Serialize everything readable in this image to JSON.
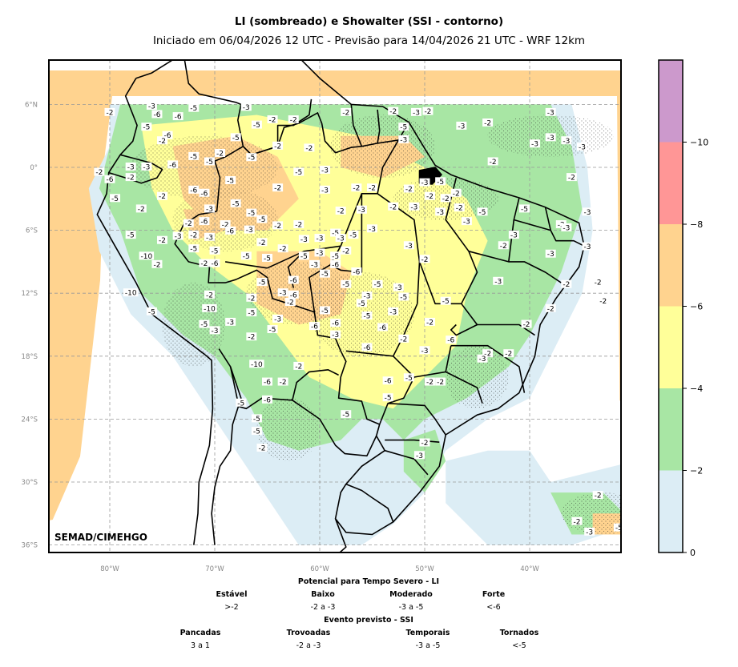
{
  "header": {
    "title": "LI (sombreado) e Showalter (SSI - contorno)",
    "subtitle": "Iniciado em 06/04/2026 12 UTC - Previsão para 14/04/2026 21 UTC - WRF 12km"
  },
  "map": {
    "credit": "SEMAD/CIMEHGO",
    "lat_labels": [
      "6°N",
      "0°",
      "6°S",
      "12°S",
      "18°S",
      "24°S",
      "30°S",
      "36°S"
    ],
    "lon_labels": [
      "80°W",
      "70°W",
      "60°W",
      "50°W",
      "40°W"
    ],
    "shading_colors": {
      "lt0": "#dcedf5",
      "lt2": "#a8e6a4",
      "lt4": "#ffff99",
      "lt6": "#ffd38f",
      "lt8": "#ff9696",
      "lt10": "#cc99cc"
    },
    "contour_labels": [
      {
        "t": "-2",
        "lon": -80,
        "lat": 5.2
      },
      {
        "t": "-3",
        "lon": -76,
        "lat": 5.8
      },
      {
        "t": "-5",
        "lon": -72,
        "lat": 5.6
      },
      {
        "t": "-6",
        "lon": -75.5,
        "lat": 5
      },
      {
        "t": "-6",
        "lon": -73.5,
        "lat": 4.8
      },
      {
        "t": "-3",
        "lon": -67,
        "lat": 5.7
      },
      {
        "t": "-2",
        "lon": -64.5,
        "lat": 4.5
      },
      {
        "t": "-2",
        "lon": -62.5,
        "lat": 4.5
      },
      {
        "t": "-5",
        "lon": -76.5,
        "lat": 3.8
      },
      {
        "t": "-6",
        "lon": -74.5,
        "lat": 3
      },
      {
        "t": "-2",
        "lon": -75,
        "lat": 2.5
      },
      {
        "t": "-5",
        "lon": -68,
        "lat": 2.8
      },
      {
        "t": "-5",
        "lon": -66,
        "lat": 4
      },
      {
        "t": "-2",
        "lon": -64,
        "lat": 2
      },
      {
        "t": "-2",
        "lon": -61,
        "lat": 1.8
      },
      {
        "t": "-2",
        "lon": -57.5,
        "lat": 5.2
      },
      {
        "t": "-2",
        "lon": -53,
        "lat": 5.3
      },
      {
        "t": "-3",
        "lon": -50.8,
        "lat": 5.2
      },
      {
        "t": "-2",
        "lon": -49.7,
        "lat": 5.3
      },
      {
        "t": "-5",
        "lon": -52,
        "lat": 3.8
      },
      {
        "t": "-3",
        "lon": -52,
        "lat": 2.6
      },
      {
        "t": "-3",
        "lon": -46.5,
        "lat": 3.9
      },
      {
        "t": "-2",
        "lon": -44,
        "lat": 4.2
      },
      {
        "t": "-3",
        "lon": -38,
        "lat": 5.2
      },
      {
        "t": "-3",
        "lon": -39.5,
        "lat": 2.2
      },
      {
        "t": "-3",
        "lon": -38,
        "lat": 2.8
      },
      {
        "t": "-3",
        "lon": -35,
        "lat": 1.9
      },
      {
        "t": "-3",
        "lon": -36.5,
        "lat": 2.5
      },
      {
        "t": "-2",
        "lon": -43.5,
        "lat": 0.5
      },
      {
        "t": "-2",
        "lon": -36,
        "lat": -1
      },
      {
        "t": "-3",
        "lon": -78,
        "lat": 0
      },
      {
        "t": "-3",
        "lon": -76.5,
        "lat": 0
      },
      {
        "t": "-6",
        "lon": -74,
        "lat": 0.2
      },
      {
        "t": "-5",
        "lon": -72,
        "lat": 1
      },
      {
        "t": "-5",
        "lon": -70.5,
        "lat": 0.5
      },
      {
        "t": "-2",
        "lon": -69.5,
        "lat": 1.3
      },
      {
        "t": "-5",
        "lon": -66.5,
        "lat": 0.9
      },
      {
        "t": "-2",
        "lon": -81,
        "lat": -0.5
      },
      {
        "t": "-6",
        "lon": -80,
        "lat": -1.2
      },
      {
        "t": "-2",
        "lon": -78,
        "lat": -1
      },
      {
        "t": "-6",
        "lon": -72,
        "lat": -2.2
      },
      {
        "t": "-6",
        "lon": -71,
        "lat": -2.5
      },
      {
        "t": "-3",
        "lon": -70.5,
        "lat": -4
      },
      {
        "t": "-2",
        "lon": -75,
        "lat": -2.8
      },
      {
        "t": "-5",
        "lon": -68.5,
        "lat": -1.3
      },
      {
        "t": "-5",
        "lon": -68,
        "lat": -3.5
      },
      {
        "t": "-5",
        "lon": -62,
        "lat": -0.5
      },
      {
        "t": "-3",
        "lon": -59.5,
        "lat": -0.3
      },
      {
        "t": "-2",
        "lon": -64,
        "lat": -2
      },
      {
        "t": "-3",
        "lon": -59.5,
        "lat": -2.2
      },
      {
        "t": "-2",
        "lon": -56.5,
        "lat": -2
      },
      {
        "t": "-2",
        "lon": -55,
        "lat": -2
      },
      {
        "t": "-2",
        "lon": -51.5,
        "lat": -2.1
      },
      {
        "t": "-2",
        "lon": -49.5,
        "lat": -2.8
      },
      {
        "t": "-2",
        "lon": -48,
        "lat": -3
      },
      {
        "t": "-3",
        "lon": -50,
        "lat": -1.5
      },
      {
        "t": "-5",
        "lon": -48.5,
        "lat": -1.4
      },
      {
        "t": "-2",
        "lon": -47,
        "lat": -2.5
      },
      {
        "t": "-5",
        "lon": -79.5,
        "lat": -3
      },
      {
        "t": "-2",
        "lon": -77,
        "lat": -4
      },
      {
        "t": "-5",
        "lon": -66.5,
        "lat": -4.4
      },
      {
        "t": "-5",
        "lon": -65.5,
        "lat": -5
      },
      {
        "t": "-2",
        "lon": -62,
        "lat": -5.5
      },
      {
        "t": "-2",
        "lon": -58,
        "lat": -4.2
      },
      {
        "t": "-3",
        "lon": -56,
        "lat": -4.1
      },
      {
        "t": "-2",
        "lon": -53,
        "lat": -3.8
      },
      {
        "t": "-3",
        "lon": -51,
        "lat": -3.8
      },
      {
        "t": "-3",
        "lon": -48.5,
        "lat": -4.3
      },
      {
        "t": "-2",
        "lon": -46.7,
        "lat": -3.9
      },
      {
        "t": "-5",
        "lon": -44.5,
        "lat": -4.3
      },
      {
        "t": "-3",
        "lon": -46,
        "lat": -5.2
      },
      {
        "t": "-5",
        "lon": -40.5,
        "lat": -4
      },
      {
        "t": "-3",
        "lon": -34.5,
        "lat": -4.3
      },
      {
        "t": "-2",
        "lon": -37,
        "lat": -5.5
      },
      {
        "t": "-3",
        "lon": -36.5,
        "lat": -5.8
      },
      {
        "t": "-2",
        "lon": -72.5,
        "lat": -5.4
      },
      {
        "t": "-6",
        "lon": -71,
        "lat": -5.2
      },
      {
        "t": "-2",
        "lon": -69,
        "lat": -5.5
      },
      {
        "t": "-3",
        "lon": -73.5,
        "lat": -6.6
      },
      {
        "t": "-2",
        "lon": -72,
        "lat": -6.5
      },
      {
        "t": "-3",
        "lon": -70.5,
        "lat": -6.7
      },
      {
        "t": "-6",
        "lon": -68.5,
        "lat": -6.1
      },
      {
        "t": "-3",
        "lon": -66.7,
        "lat": -6
      },
      {
        "t": "-2",
        "lon": -64,
        "lat": -5.6
      },
      {
        "t": "-3",
        "lon": -61.5,
        "lat": -6.9
      },
      {
        "t": "-3",
        "lon": -60,
        "lat": -6.8
      },
      {
        "t": "-5",
        "lon": -58.5,
        "lat": -6.3
      },
      {
        "t": "-5",
        "lon": -56.8,
        "lat": -6.5
      },
      {
        "t": "-3",
        "lon": -55,
        "lat": -5.9
      },
      {
        "t": "-3",
        "lon": -58,
        "lat": -6.8
      },
      {
        "t": "-5",
        "lon": -78,
        "lat": -6.5
      },
      {
        "t": "-2",
        "lon": -75,
        "lat": -7
      },
      {
        "t": "-10",
        "lon": -76.5,
        "lat": -8.5
      },
      {
        "t": "-2",
        "lon": -75.5,
        "lat": -9.3
      },
      {
        "t": "-5",
        "lon": -72,
        "lat": -7.8
      },
      {
        "t": "-5",
        "lon": -70,
        "lat": -8
      },
      {
        "t": "-2",
        "lon": -71,
        "lat": -9.2
      },
      {
        "t": "-6",
        "lon": -70,
        "lat": -9.2
      },
      {
        "t": "-5",
        "lon": -67,
        "lat": -8.5
      },
      {
        "t": "-5",
        "lon": -65,
        "lat": -8.7
      },
      {
        "t": "-2",
        "lon": -65.5,
        "lat": -7.2
      },
      {
        "t": "-2",
        "lon": -63.5,
        "lat": -7.8
      },
      {
        "t": "-5",
        "lon": -61.5,
        "lat": -8.5
      },
      {
        "t": "-3",
        "lon": -60,
        "lat": -8.2
      },
      {
        "t": "-5",
        "lon": -58.5,
        "lat": -8.5
      },
      {
        "t": "-2",
        "lon": -57.5,
        "lat": -8
      },
      {
        "t": "-6",
        "lon": -58.5,
        "lat": -9.3
      },
      {
        "t": "-6",
        "lon": -56.5,
        "lat": -10
      },
      {
        "t": "-5",
        "lon": -59.5,
        "lat": -10.2
      },
      {
        "t": "-3",
        "lon": -60.5,
        "lat": -9.3
      },
      {
        "t": "-2",
        "lon": -50,
        "lat": -8.8
      },
      {
        "t": "-2",
        "lon": -42.5,
        "lat": -7.5
      },
      {
        "t": "-3",
        "lon": -51.5,
        "lat": -7.5
      },
      {
        "t": "-3",
        "lon": -41.5,
        "lat": -6.5
      },
      {
        "t": "-3",
        "lon": -34.5,
        "lat": -7.6
      },
      {
        "t": "-3",
        "lon": -38,
        "lat": -8.3
      },
      {
        "t": "-10",
        "lon": -78,
        "lat": -12
      },
      {
        "t": "-5",
        "lon": -65.5,
        "lat": -11
      },
      {
        "t": "-6",
        "lon": -62.5,
        "lat": -10.8
      },
      {
        "t": "-5",
        "lon": -57.5,
        "lat": -11.2
      },
      {
        "t": "-5",
        "lon": -54.5,
        "lat": -11.2
      },
      {
        "t": "-3",
        "lon": -52.5,
        "lat": -11.5
      },
      {
        "t": "-3",
        "lon": -55.5,
        "lat": -12.3
      },
      {
        "t": "-5",
        "lon": -52,
        "lat": -12.4
      },
      {
        "t": "-5",
        "lon": -56,
        "lat": -13
      },
      {
        "t": "-3",
        "lon": -53,
        "lat": -13.8
      },
      {
        "t": "-5",
        "lon": -48,
        "lat": -12.8
      },
      {
        "t": "-3",
        "lon": -43,
        "lat": -10.9
      },
      {
        "t": "-2",
        "lon": -33.5,
        "lat": -11
      },
      {
        "t": "-2",
        "lon": -36.5,
        "lat": -11.2
      },
      {
        "t": "-2",
        "lon": -33,
        "lat": -12.8
      },
      {
        "t": "-2",
        "lon": -38,
        "lat": -13.5
      },
      {
        "t": "-3",
        "lon": -63.5,
        "lat": -12
      },
      {
        "t": "-6",
        "lon": -62.5,
        "lat": -12.2
      },
      {
        "t": "-2",
        "lon": -62.8,
        "lat": -12.9
      },
      {
        "t": "-2",
        "lon": -70.5,
        "lat": -12.2
      },
      {
        "t": "-2",
        "lon": -66.5,
        "lat": -12.5
      },
      {
        "t": "-10",
        "lon": -70.5,
        "lat": -13.5
      },
      {
        "t": "-5",
        "lon": -76,
        "lat": -13.8
      },
      {
        "t": "-5",
        "lon": -71,
        "lat": -15
      },
      {
        "t": "-3",
        "lon": -70,
        "lat": -15.6
      },
      {
        "t": "-3",
        "lon": -68.5,
        "lat": -14.8
      },
      {
        "t": "-5",
        "lon": -66.5,
        "lat": -13.9
      },
      {
        "t": "-5",
        "lon": -64.5,
        "lat": -15.5
      },
      {
        "t": "-3",
        "lon": -64,
        "lat": -14.5
      },
      {
        "t": "-2",
        "lon": -66.5,
        "lat": -16.2
      },
      {
        "t": "-5",
        "lon": -59.5,
        "lat": -13.7
      },
      {
        "t": "-6",
        "lon": -60.5,
        "lat": -15.2
      },
      {
        "t": "-6",
        "lon": -58.5,
        "lat": -14.9
      },
      {
        "t": "-5",
        "lon": -55.5,
        "lat": -14.2
      },
      {
        "t": "-6",
        "lon": -54,
        "lat": -15.3
      },
      {
        "t": "-3",
        "lon": -58.5,
        "lat": -16
      },
      {
        "t": "-2",
        "lon": -52,
        "lat": -16.4
      },
      {
        "t": "-2",
        "lon": -49.5,
        "lat": -14.8
      },
      {
        "t": "-6",
        "lon": -47.5,
        "lat": -16.5
      },
      {
        "t": "-3",
        "lon": -50,
        "lat": -17.5
      },
      {
        "t": "-6",
        "lon": -55.5,
        "lat": -17.2
      },
      {
        "t": "-2",
        "lon": -44,
        "lat": -17.8
      },
      {
        "t": "-2",
        "lon": -42,
        "lat": -17.8
      },
      {
        "t": "-3",
        "lon": -44.5,
        "lat": -18.3
      },
      {
        "t": "-2",
        "lon": -40.3,
        "lat": -15
      },
      {
        "t": "-10",
        "lon": -66,
        "lat": -18.8
      },
      {
        "t": "-2",
        "lon": -62,
        "lat": -19
      },
      {
        "t": "-6",
        "lon": -65,
        "lat": -20.5
      },
      {
        "t": "-2",
        "lon": -63.5,
        "lat": -20.5
      },
      {
        "t": "-6",
        "lon": -65,
        "lat": -22.2
      },
      {
        "t": "-5",
        "lon": -67.5,
        "lat": -22.5
      },
      {
        "t": "-5",
        "lon": -66,
        "lat": -24
      },
      {
        "t": "-5",
        "lon": -66,
        "lat": -25.2
      },
      {
        "t": "-2",
        "lon": -65.5,
        "lat": -26.8
      },
      {
        "t": "-6",
        "lon": -53.5,
        "lat": -20.4
      },
      {
        "t": "-5",
        "lon": -51.5,
        "lat": -20.1
      },
      {
        "t": "-5",
        "lon": -53.5,
        "lat": -22
      },
      {
        "t": "-2",
        "lon": -49.5,
        "lat": -20.5
      },
      {
        "t": "-2",
        "lon": -48.5,
        "lat": -20.5
      },
      {
        "t": "-5",
        "lon": -57.5,
        "lat": -23.6
      },
      {
        "t": "-2",
        "lon": -50,
        "lat": -26.3
      },
      {
        "t": "-3",
        "lon": -50.5,
        "lat": -27.5
      },
      {
        "t": "-2",
        "lon": -33.5,
        "lat": -31.3
      },
      {
        "t": "-2",
        "lon": -35.5,
        "lat": -33.8
      },
      {
        "t": "-3",
        "lon": -34.3,
        "lat": -34.8
      },
      {
        "t": "-5",
        "lon": -31.5,
        "lat": -34.4
      }
    ],
    "stipple_areas": [
      {
        "lon": -71,
        "lat": 0,
        "rx": 7,
        "ry": 3
      },
      {
        "lon": -69,
        "lat": -5,
        "rx": 5,
        "ry": 3
      },
      {
        "lon": -62,
        "lat": -12,
        "rx": 5,
        "ry": 3
      },
      {
        "lon": -56,
        "lat": -14,
        "rx": 5,
        "ry": 4
      },
      {
        "lon": -54,
        "lat": 2,
        "rx": 5,
        "ry": 3
      },
      {
        "lon": -48,
        "lat": -3,
        "rx": 5,
        "ry": 2
      },
      {
        "lon": -72,
        "lat": -15,
        "rx": 3,
        "ry": 4
      },
      {
        "lon": -63,
        "lat": -25,
        "rx": 3,
        "ry": 3
      },
      {
        "lon": -45,
        "lat": -20,
        "rx": 3,
        "ry": 3
      },
      {
        "lon": -33,
        "lat": -33,
        "rx": 4,
        "ry": 2
      },
      {
        "lon": -38,
        "lat": 3,
        "rx": 6,
        "ry": 2
      }
    ]
  },
  "colorbar": {
    "ticks": [
      "0",
      "−2",
      "−4",
      "−6",
      "−8",
      "−10"
    ]
  },
  "legend": {
    "li_title": "Potencial para Tempo Severo - LI",
    "li_categories": [
      {
        "name": "Estável",
        "range": ">-2"
      },
      {
        "name": "Baixo",
        "range": "-2 a -3"
      },
      {
        "name": "Moderado",
        "range": "-3 a -5"
      },
      {
        "name": "Forte",
        "range": "<-6"
      }
    ],
    "ssi_title": "Evento previsto - SSI",
    "ssi_categories": [
      {
        "name": "Pancadas",
        "range": "3 a 1"
      },
      {
        "name": "Trovoadas",
        "range": "-2 a -3"
      },
      {
        "name": "Temporais",
        "range": "-3 a -5"
      },
      {
        "name": "Tornados",
        "range": "<-5"
      }
    ]
  }
}
